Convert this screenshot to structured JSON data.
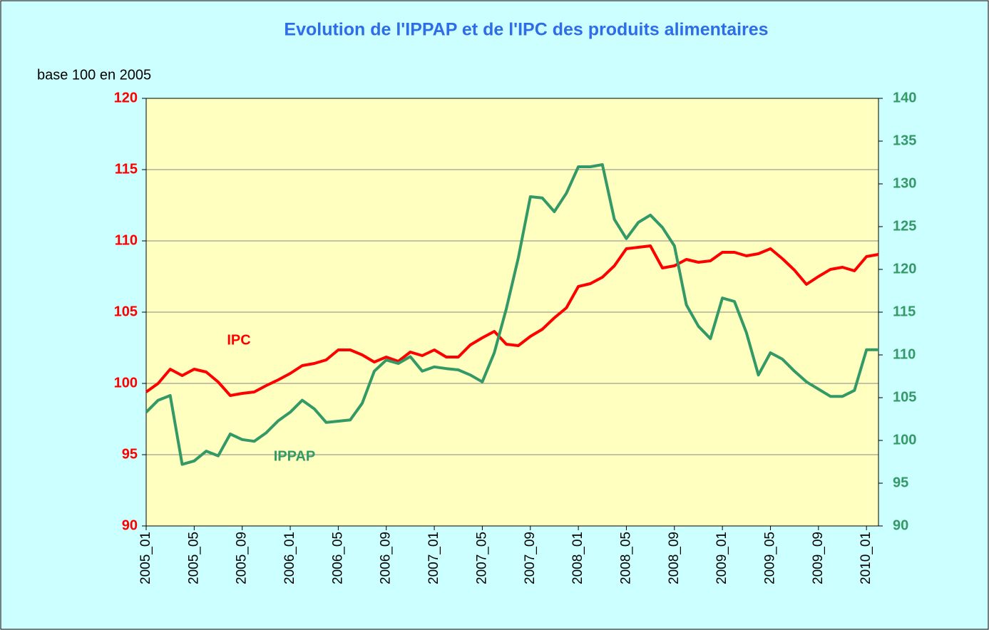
{
  "chart_data": {
    "type": "line",
    "title": "Evolution de l'IPPAP et de l'IPC des produits alimentaires",
    "ylabel": "base 100 en 2005",
    "categories": [
      "2005_01",
      null,
      null,
      null,
      "2005_05",
      null,
      null,
      null,
      "2005_09",
      null,
      null,
      null,
      "2006_01",
      null,
      null,
      null,
      "2006_05",
      null,
      null,
      null,
      "2006_09",
      null,
      null,
      null,
      "2007_01",
      null,
      null,
      null,
      "2007_05",
      null,
      null,
      null,
      "2007_09",
      null,
      null,
      null,
      "2008_01",
      null,
      null,
      null,
      "2008_05",
      null,
      null,
      null,
      "2008_09",
      null,
      null,
      null,
      "2009_01",
      null,
      null,
      null,
      "2009_05",
      null,
      null,
      null,
      "2009_09",
      null,
      null,
      null,
      "2010_01",
      null
    ],
    "series": [
      {
        "name": "IPC",
        "color": "#ff0000",
        "axis": "y",
        "values": [
          99.4,
          100.0,
          101.0,
          100.55,
          101.0,
          100.8,
          100.1,
          99.15,
          99.3,
          99.4,
          99.85,
          100.25,
          100.7,
          101.25,
          101.4,
          101.65,
          102.35,
          102.35,
          102.0,
          101.5,
          101.85,
          101.55,
          102.2,
          101.95,
          102.35,
          101.85,
          101.85,
          102.7,
          103.2,
          103.65,
          102.75,
          102.65,
          103.3,
          103.8,
          104.6,
          105.3,
          106.8,
          107.0,
          107.45,
          108.25,
          109.45,
          109.55,
          109.65,
          108.1,
          108.25,
          108.7,
          108.5,
          108.6,
          109.2,
          109.2,
          108.95,
          109.1,
          109.45,
          108.75,
          107.95,
          106.95,
          107.5,
          108.0,
          108.15,
          107.9,
          108.9,
          109.05
        ]
      },
      {
        "name": "IPPAP",
        "color": "#339966",
        "axis": "y2",
        "values": [
          103.3,
          104.7,
          105.25,
          97.2,
          97.6,
          98.75,
          98.2,
          100.75,
          100.1,
          99.9,
          100.9,
          102.3,
          103.3,
          104.7,
          103.7,
          102.1,
          102.25,
          102.4,
          104.35,
          108.1,
          109.4,
          109.0,
          109.8,
          108.1,
          108.6,
          108.4,
          108.25,
          107.65,
          106.85,
          110.25,
          115.4,
          121.35,
          128.5,
          128.35,
          126.75,
          128.9,
          132.0,
          132.0,
          132.25,
          125.85,
          123.6,
          125.5,
          126.35,
          124.9,
          122.75,
          115.85,
          113.35,
          111.9,
          116.65,
          116.25,
          112.6,
          107.65,
          110.25,
          109.5,
          108.1,
          106.85,
          106.0,
          105.15,
          105.15,
          105.85,
          110.6,
          110.6
        ]
      }
    ],
    "ylim": [
      90,
      120
    ],
    "yticks": [
      90,
      95,
      100,
      105,
      110,
      115,
      120
    ],
    "y2lim": [
      90,
      140
    ],
    "y2ticks": [
      90,
      95,
      100,
      105,
      110,
      115,
      120,
      125,
      130,
      135,
      140
    ],
    "grid": true
  }
}
